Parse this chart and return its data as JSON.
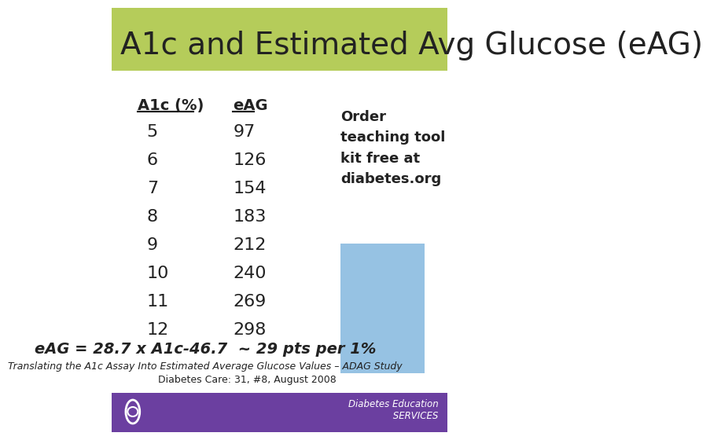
{
  "title": "A1c and Estimated Avg Glucose (eAG)",
  "title_bg_color": "#b5cc5a",
  "title_fontsize": 28,
  "title_font_color": "#222222",
  "col1_header": "A1c (%)",
  "col2_header": "eAG",
  "a1c_values": [
    5,
    6,
    7,
    8,
    9,
    10,
    11,
    12
  ],
  "eag_values": [
    97,
    126,
    154,
    183,
    212,
    240,
    269,
    298
  ],
  "sidebar_text": "Order\nteaching tool\nkit free at\ndiabetes.org",
  "formula_text": "eAG = 28.7 x A1c-46.7  ~ 29 pts per 1%",
  "footnote1": "Translating the A1c Assay Into Estimated Average Glucose Values – ADAG Study",
  "footnote2": "Diabetes Care: 31, #8, August 2008",
  "footer_bg_color": "#6b3fa0",
  "bg_color": "#ffffff",
  "table_text_color": "#222222",
  "footer_text_color": "#ffffff"
}
